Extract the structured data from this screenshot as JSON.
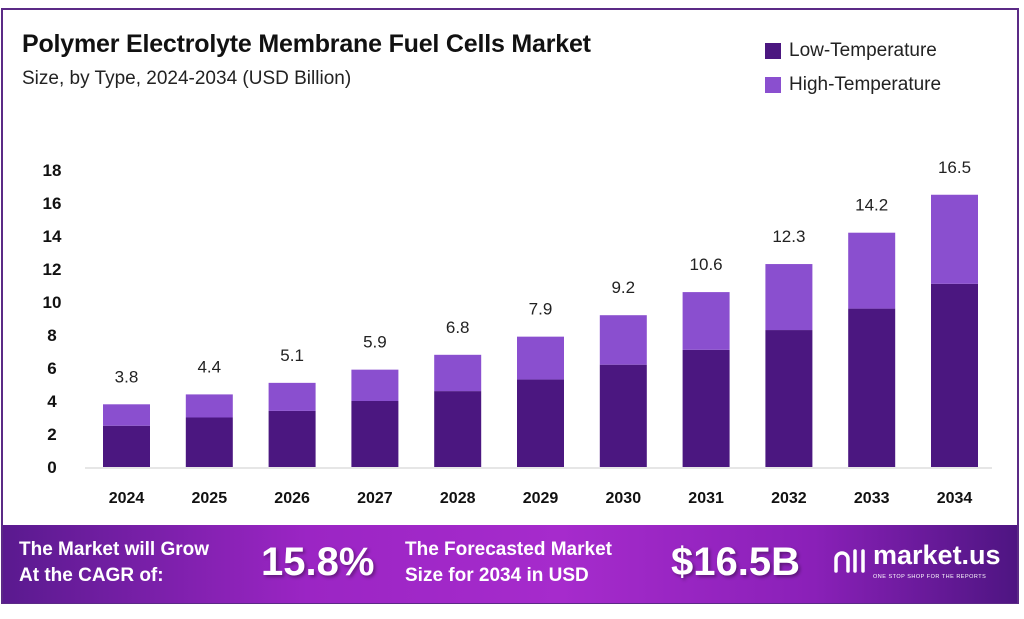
{
  "chart_data": {
    "type": "bar",
    "stacked": true,
    "title": "Polymer Electrolyte Membrane Fuel Cells Market",
    "subtitle": "Size, by Type, 2024-2034 (USD Billion)",
    "xlabel": "",
    "ylabel": "",
    "ylim": [
      0,
      18
    ],
    "yticks": [
      0,
      2,
      4,
      6,
      8,
      10,
      12,
      14,
      16,
      18
    ],
    "categories": [
      "2024",
      "2025",
      "2026",
      "2027",
      "2028",
      "2029",
      "2030",
      "2031",
      "2032",
      "2033",
      "2034"
    ],
    "series": [
      {
        "name": "Low-Temperature",
        "color": "#4b1780",
        "values": [
          2.5,
          3.0,
          3.4,
          4.0,
          4.6,
          5.3,
          6.2,
          7.1,
          8.3,
          9.6,
          11.1
        ]
      },
      {
        "name": "High-Temperature",
        "color": "#8a4fcf",
        "values": [
          1.3,
          1.4,
          1.7,
          1.9,
          2.2,
          2.6,
          3.0,
          3.5,
          4.0,
          4.6,
          5.4
        ]
      }
    ],
    "totals": [
      "3.8",
      "4.4",
      "5.1",
      "5.9",
      "6.8",
      "7.9",
      "9.2",
      "10.6",
      "12.3",
      "14.2",
      "16.5"
    ],
    "legend_position": "top-right",
    "grid": false
  },
  "footer": {
    "cagr_label_1": "The Market will Grow",
    "cagr_label_2": "At the CAGR of:",
    "cagr_value": "15.8%",
    "forecast_label_1": "The Forecasted Market",
    "forecast_label_2": "Size for 2034 in USD",
    "forecast_value": "$16.5B",
    "brand_name": "market.us",
    "brand_tagline": "ONE STOP SHOP FOR THE REPORTS"
  }
}
